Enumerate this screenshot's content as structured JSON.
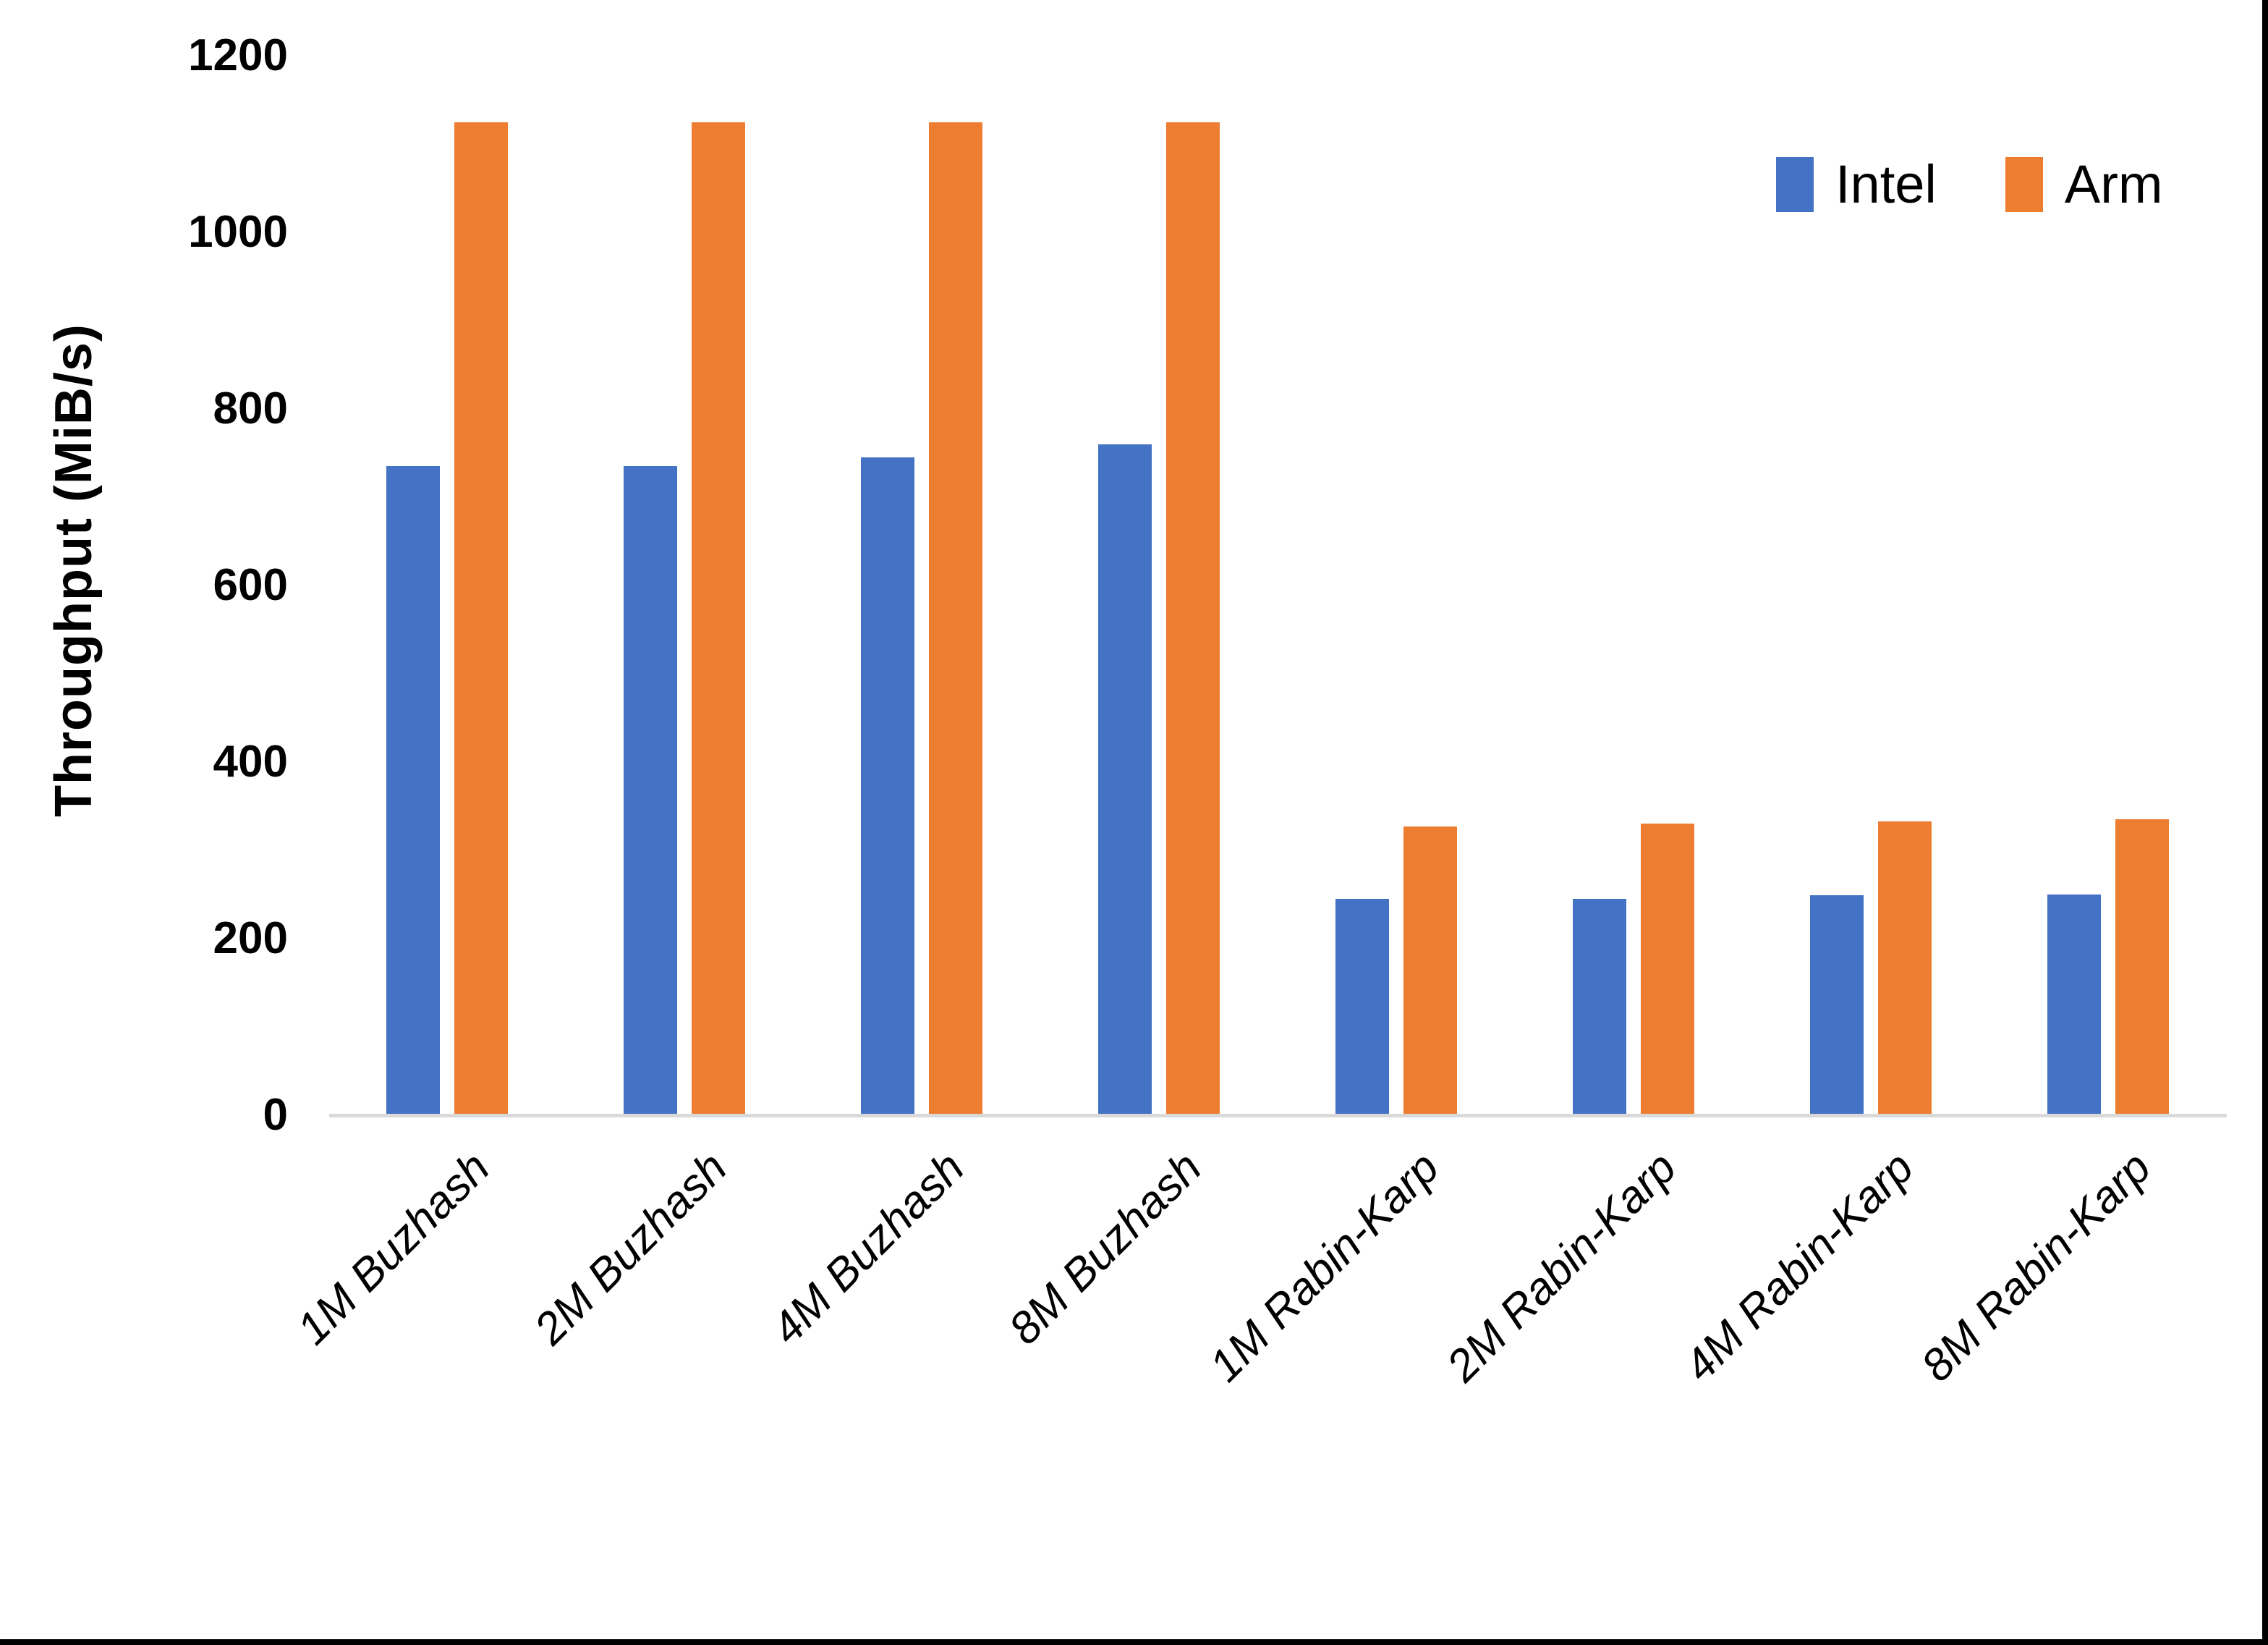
{
  "chart_data": {
    "type": "bar",
    "title": "",
    "xlabel": "",
    "ylabel": "Throughput (MiB/s)",
    "ylim": [
      0,
      1200
    ],
    "yticks": [
      0,
      200,
      400,
      600,
      800,
      1000,
      1200
    ],
    "grid": false,
    "legend_position": "top-right",
    "categories": [
      "1M Buzhash",
      "2M Buzhash",
      "4M Buzhash",
      "8M Buzhash",
      "1M Rabin-Karp",
      "2M Rabin-Karp",
      "4M Rabin-Karp",
      "8M Rabin-Karp"
    ],
    "series": [
      {
        "name": "Intel",
        "color": "#4472C4",
        "values": [
          735,
          735,
          745,
          760,
          245,
          245,
          249,
          250
        ]
      },
      {
        "name": "Arm",
        "color": "#ED7D31",
        "values": [
          1125,
          1125,
          1125,
          1125,
          327,
          330,
          333,
          335
        ]
      }
    ]
  },
  "colors": {
    "intel": "#4472C4",
    "arm": "#ED7D31",
    "axis_line": "#D9D9D9",
    "text": "#000000",
    "frame": "#000000",
    "background": "#FFFFFF"
  }
}
